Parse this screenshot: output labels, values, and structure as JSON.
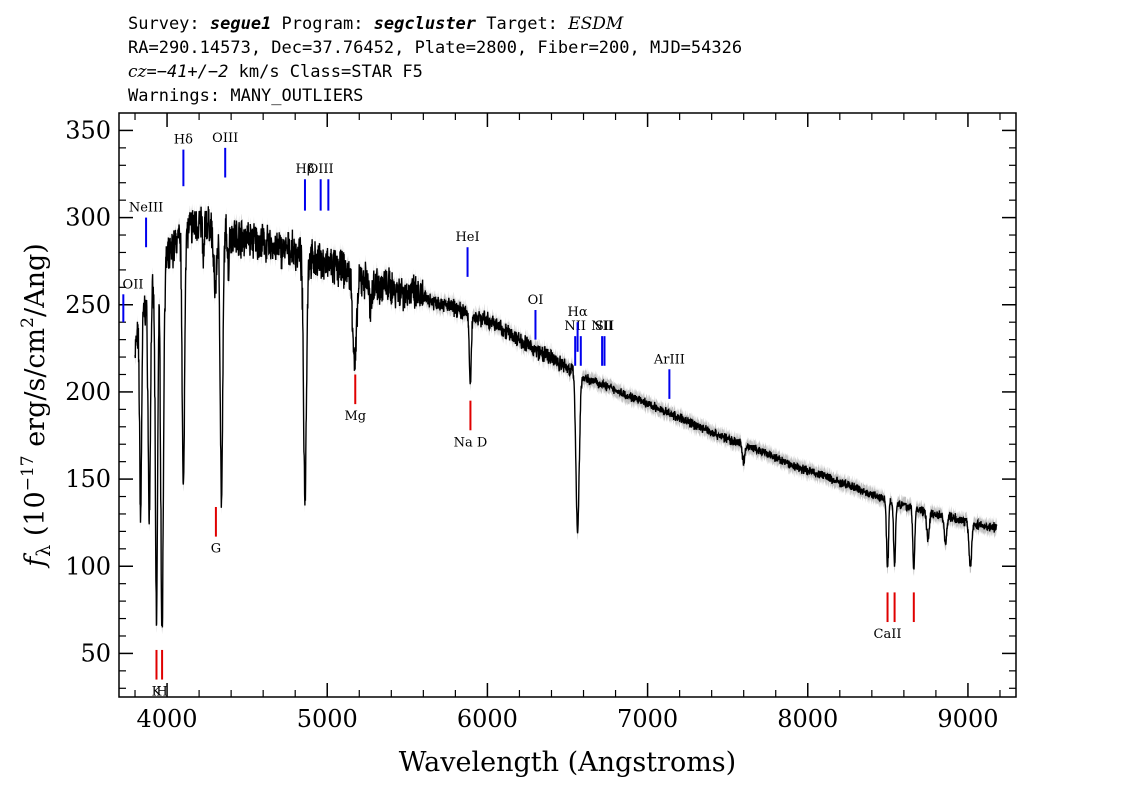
{
  "header": {
    "line1": {
      "survey_label": "Survey: ",
      "survey": "segue1",
      "program_label": " Program: ",
      "program": "segcluster",
      "target_label": " Target: ",
      "target": "ESDM"
    },
    "line2": "RA=290.14573, Dec=37.76452, Plate=2800, Fiber=200, MJD=54326",
    "line3": {
      "cz_label": "cz",
      "cz_value": "=−41+/−2",
      "cz_unit": " km/s",
      "class": " Class=STAR F5"
    },
    "line4": "Warnings: MANY_OUTLIERS"
  },
  "colors": {
    "emission": "#0000ee",
    "absorption": "#e00000",
    "spectrum": "#000000",
    "error_band": "#b0b0b0"
  },
  "chart_data": {
    "type": "line",
    "xlabel": "Wavelength (Angstroms)",
    "ylabel": {
      "prefix": "f",
      "sub": "λ",
      "units": " (10",
      "exp1": "−17",
      "units2": " erg/s/cm",
      "exp2": "2",
      "units3": "/Ang)"
    },
    "xlim": [
      3700,
      9300
    ],
    "ylim": [
      25,
      360
    ],
    "xticks": [
      4000,
      5000,
      6000,
      7000,
      8000,
      9000
    ],
    "yticks": [
      50,
      100,
      150,
      200,
      250,
      300,
      350
    ],
    "grid": false,
    "continuum": [
      [
        3800,
        225
      ],
      [
        3850,
        245
      ],
      [
        3900,
        255
      ],
      [
        3950,
        268
      ],
      [
        4000,
        275
      ],
      [
        4050,
        285
      ],
      [
        4100,
        290
      ],
      [
        4150,
        295
      ],
      [
        4200,
        297
      ],
      [
        4300,
        295
      ],
      [
        4400,
        290
      ],
      [
        4500,
        288
      ],
      [
        4600,
        285
      ],
      [
        4700,
        282
      ],
      [
        4800,
        280
      ],
      [
        4900,
        276
      ],
      [
        5000,
        273
      ],
      [
        5100,
        270
      ],
      [
        5200,
        265
      ],
      [
        5300,
        262
      ],
      [
        5400,
        260
      ],
      [
        5500,
        257
      ],
      [
        5600,
        254
      ],
      [
        5700,
        251
      ],
      [
        5800,
        248
      ],
      [
        5900,
        244
      ],
      [
        6000,
        241
      ],
      [
        6100,
        236
      ],
      [
        6200,
        230
      ],
      [
        6300,
        224
      ],
      [
        6400,
        219
      ],
      [
        6500,
        214
      ],
      [
        6600,
        208
      ],
      [
        6700,
        205
      ],
      [
        6800,
        201
      ],
      [
        6900,
        197
      ],
      [
        7000,
        193
      ],
      [
        7100,
        189
      ],
      [
        7200,
        185
      ],
      [
        7300,
        181
      ],
      [
        7400,
        177
      ],
      [
        7500,
        173
      ],
      [
        7600,
        170
      ],
      [
        7700,
        166
      ],
      [
        7800,
        162
      ],
      [
        7900,
        158
      ],
      [
        8000,
        155
      ],
      [
        8100,
        152
      ],
      [
        8200,
        148
      ],
      [
        8300,
        145
      ],
      [
        8400,
        141
      ],
      [
        8500,
        138
      ],
      [
        8600,
        135
      ],
      [
        8700,
        132
      ],
      [
        8800,
        130
      ],
      [
        8900,
        128
      ],
      [
        9000,
        125
      ],
      [
        9100,
        123
      ],
      [
        9180,
        122
      ]
    ],
    "absorption_features": [
      {
        "center": 3835,
        "depth": 110,
        "width": 6
      },
      {
        "center": 3889,
        "depth": 125,
        "width": 7
      },
      {
        "center": 3934,
        "depth": 195,
        "width": 7
      },
      {
        "center": 3969,
        "depth": 210,
        "width": 8
      },
      {
        "center": 4102,
        "depth": 150,
        "width": 7
      },
      {
        "center": 4227,
        "depth": 25,
        "width": 4
      },
      {
        "center": 4300,
        "depth": 35,
        "width": 10
      },
      {
        "center": 4340,
        "depth": 155,
        "width": 8
      },
      {
        "center": 4383,
        "depth": 20,
        "width": 4
      },
      {
        "center": 4861,
        "depth": 135,
        "width": 9
      },
      {
        "center": 5172,
        "depth": 50,
        "width": 12
      },
      {
        "center": 5270,
        "depth": 18,
        "width": 6
      },
      {
        "center": 5893,
        "depth": 40,
        "width": 6
      },
      {
        "center": 6563,
        "depth": 90,
        "width": 10
      },
      {
        "center": 7600,
        "depth": 10,
        "width": 8
      },
      {
        "center": 8498,
        "depth": 40,
        "width": 6
      },
      {
        "center": 8542,
        "depth": 35,
        "width": 6
      },
      {
        "center": 8662,
        "depth": 35,
        "width": 6
      },
      {
        "center": 8750,
        "depth": 15,
        "width": 8
      },
      {
        "center": 8860,
        "depth": 15,
        "width": 8
      },
      {
        "center": 9015,
        "depth": 25,
        "width": 8
      }
    ],
    "emission_lines": [
      {
        "label": "OII",
        "x": 3727,
        "y0": 240,
        "y1": 256
      },
      {
        "label": "NeIII",
        "x": 3869,
        "y0": 283,
        "y1": 300
      },
      {
        "label": "Hδ",
        "x": 4102,
        "y0": 318,
        "y1": 339
      },
      {
        "label": "OIII",
        "x": 4363,
        "y0": 323,
        "y1": 340
      },
      {
        "label": "Hβ",
        "x": 4861,
        "y0": 304,
        "y1": 322
      },
      {
        "label": "OIII",
        "x": 4959,
        "y0": 304,
        "y1": 322
      },
      {
        "label": "",
        "x": 5007,
        "y0": 304,
        "y1": 322
      },
      {
        "label": "HeI",
        "x": 5876,
        "y0": 266,
        "y1": 283
      },
      {
        "label": "OI",
        "x": 6300,
        "y0": 230,
        "y1": 247
      },
      {
        "label": "NII",
        "x": 6548,
        "y0": 215,
        "y1": 232
      },
      {
        "label": "Hα",
        "x": 6563,
        "y0": 223,
        "y1": 240
      },
      {
        "label": "",
        "x": 6583,
        "y0": 215,
        "y1": 232
      },
      {
        "label": "NII",
        "x": 6716,
        "y0": 215,
        "y1": 232
      },
      {
        "label": "SII",
        "x": 6731,
        "y0": 215,
        "y1": 232
      },
      {
        "label": "ArIII",
        "x": 7136,
        "y0": 196,
        "y1": 213
      }
    ],
    "absorption_lines": [
      {
        "label": "K",
        "x": 3934,
        "y0": 35,
        "y1": 52
      },
      {
        "label": "H",
        "x": 3969,
        "y0": 35,
        "y1": 52
      },
      {
        "label": "G",
        "x": 4305,
        "y0": 117,
        "y1": 134
      },
      {
        "label": "Mg",
        "x": 5175,
        "y0": 193,
        "y1": 210
      },
      {
        "label": "Na D",
        "x": 5894,
        "y0": 178,
        "y1": 195
      },
      {
        "label": "CaII",
        "x": 8498,
        "y0": 68,
        "y1": 85
      },
      {
        "label": "",
        "x": 8542,
        "y0": 68,
        "y1": 85
      },
      {
        "label": "",
        "x": 8662,
        "y0": 68,
        "y1": 85
      }
    ]
  }
}
